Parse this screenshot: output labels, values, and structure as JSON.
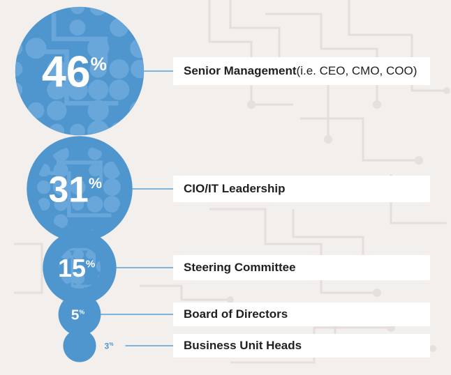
{
  "chart_data": {
    "type": "bubble",
    "unit": "%",
    "categories": [
      {
        "label": "Senior Management",
        "note": " (i.e. CEO, CMO, COO)",
        "value": 46
      },
      {
        "label": "CIO/IT Leadership",
        "note": "",
        "value": 31
      },
      {
        "label": "Steering Committee",
        "note": "",
        "value": 15
      },
      {
        "label": "Board of Directors",
        "note": "",
        "value": 5
      },
      {
        "label": "Business Unit Heads",
        "note": "",
        "value": 3
      }
    ]
  },
  "colors": {
    "bubble_fill": "#4f96cf",
    "bubble_pattern": "#8bbde6",
    "connector": "#5b9fd4",
    "label_box": "#ffffff",
    "label_text": "#1f1f1f",
    "background": "#f3efed",
    "circuit": "#e2dcda"
  }
}
